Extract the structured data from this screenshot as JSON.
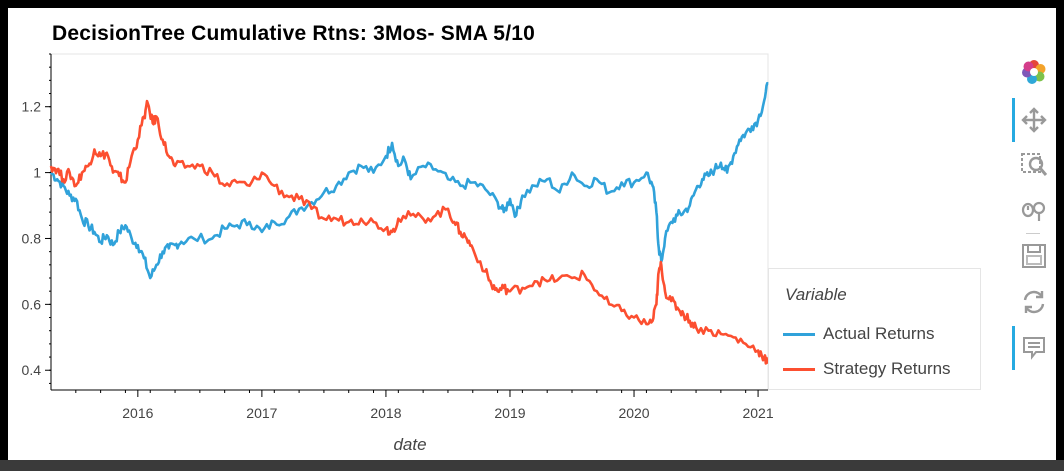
{
  "chart_data": {
    "type": "line",
    "title": "DecisionTree Cumulative Rtns: 3Mos- SMA 5/10",
    "xlabel": "date",
    "ylabel": "",
    "xlim": [
      2015.3,
      2021.08
    ],
    "ylim": [
      0.34,
      1.36
    ],
    "x_ticks": [
      "2016",
      "2017",
      "2018",
      "2019",
      "2020",
      "2021"
    ],
    "x_tick_values": [
      2016,
      2017,
      2018,
      2019,
      2020,
      2021
    ],
    "y_ticks": [
      "0.4",
      "0.6",
      "0.8",
      "1",
      "1.2"
    ],
    "y_tick_values": [
      0.4,
      0.6,
      0.8,
      1.0,
      1.2
    ],
    "grid": false,
    "legend": {
      "title": "Variable",
      "placement": "right"
    },
    "series": [
      {
        "name": "Actual Returns",
        "color": "#30a2da",
        "points": [
          [
            2015.3,
            1.0
          ],
          [
            2015.35,
            0.98
          ],
          [
            2015.4,
            0.96
          ],
          [
            2015.45,
            0.93
          ],
          [
            2015.5,
            0.92
          ],
          [
            2015.55,
            0.86
          ],
          [
            2015.6,
            0.84
          ],
          [
            2015.65,
            0.82
          ],
          [
            2015.7,
            0.79
          ],
          [
            2015.75,
            0.81
          ],
          [
            2015.8,
            0.78
          ],
          [
            2015.85,
            0.82
          ],
          [
            2015.9,
            0.84
          ],
          [
            2015.95,
            0.8
          ],
          [
            2016.0,
            0.78
          ],
          [
            2016.05,
            0.74
          ],
          [
            2016.1,
            0.68
          ],
          [
            2016.15,
            0.72
          ],
          [
            2016.2,
            0.76
          ],
          [
            2016.25,
            0.77
          ],
          [
            2016.3,
            0.78
          ],
          [
            2016.35,
            0.79
          ],
          [
            2016.45,
            0.8
          ],
          [
            2016.6,
            0.8
          ],
          [
            2016.7,
            0.83
          ],
          [
            2016.8,
            0.84
          ],
          [
            2016.9,
            0.85
          ],
          [
            2017.0,
            0.82
          ],
          [
            2017.1,
            0.85
          ],
          [
            2017.2,
            0.86
          ],
          [
            2017.3,
            0.89
          ],
          [
            2017.4,
            0.91
          ],
          [
            2017.5,
            0.94
          ],
          [
            2017.6,
            0.96
          ],
          [
            2017.7,
            1.0
          ],
          [
            2017.8,
            1.02
          ],
          [
            2017.9,
            1.0
          ],
          [
            2018.0,
            1.05
          ],
          [
            2018.05,
            1.09
          ],
          [
            2018.1,
            1.02
          ],
          [
            2018.15,
            1.04
          ],
          [
            2018.2,
            0.98
          ],
          [
            2018.3,
            1.02
          ],
          [
            2018.4,
            1.01
          ],
          [
            2018.5,
            0.98
          ],
          [
            2018.6,
            0.96
          ],
          [
            2018.7,
            0.97
          ],
          [
            2018.8,
            0.95
          ],
          [
            2018.9,
            0.91
          ],
          [
            2018.95,
            0.88
          ],
          [
            2019.0,
            0.92
          ],
          [
            2019.05,
            0.87
          ],
          [
            2019.1,
            0.93
          ],
          [
            2019.2,
            0.96
          ],
          [
            2019.3,
            0.98
          ],
          [
            2019.4,
            0.94
          ],
          [
            2019.5,
            1.0
          ],
          [
            2019.6,
            0.96
          ],
          [
            2019.7,
            0.98
          ],
          [
            2019.8,
            0.94
          ],
          [
            2019.9,
            0.97
          ],
          [
            2020.0,
            0.97
          ],
          [
            2020.1,
            1.0
          ],
          [
            2020.15,
            0.96
          ],
          [
            2020.18,
            0.88
          ],
          [
            2020.2,
            0.77
          ],
          [
            2020.22,
            0.73
          ],
          [
            2020.25,
            0.8
          ],
          [
            2020.3,
            0.85
          ],
          [
            2020.35,
            0.87
          ],
          [
            2020.4,
            0.88
          ],
          [
            2020.45,
            0.9
          ],
          [
            2020.5,
            0.95
          ],
          [
            2020.55,
            0.98
          ],
          [
            2020.6,
            0.99
          ],
          [
            2020.65,
            1.01
          ],
          [
            2020.7,
            1.03
          ],
          [
            2020.75,
            1.0
          ],
          [
            2020.8,
            1.05
          ],
          [
            2020.85,
            1.1
          ],
          [
            2020.9,
            1.12
          ],
          [
            2020.95,
            1.14
          ],
          [
            2021.0,
            1.16
          ],
          [
            2021.05,
            1.22
          ],
          [
            2021.08,
            1.27
          ]
        ]
      },
      {
        "name": "Strategy Returns",
        "color": "#fc4f30",
        "points": [
          [
            2015.3,
            1.02
          ],
          [
            2015.35,
            1.01
          ],
          [
            2015.4,
            0.98
          ],
          [
            2015.45,
            1.0
          ],
          [
            2015.5,
            0.96
          ],
          [
            2015.55,
            1.0
          ],
          [
            2015.6,
            1.02
          ],
          [
            2015.65,
            1.07
          ],
          [
            2015.7,
            1.05
          ],
          [
            2015.75,
            1.06
          ],
          [
            2015.8,
            1.0
          ],
          [
            2015.85,
            0.99
          ],
          [
            2015.9,
            0.97
          ],
          [
            2015.95,
            1.05
          ],
          [
            2016.0,
            1.1
          ],
          [
            2016.05,
            1.17
          ],
          [
            2016.08,
            1.21
          ],
          [
            2016.12,
            1.15
          ],
          [
            2016.15,
            1.17
          ],
          [
            2016.2,
            1.1
          ],
          [
            2016.25,
            1.05
          ],
          [
            2016.3,
            1.02
          ],
          [
            2016.4,
            1.02
          ],
          [
            2016.5,
            1.02
          ],
          [
            2016.6,
            1.0
          ],
          [
            2016.7,
            0.96
          ],
          [
            2016.8,
            0.97
          ],
          [
            2016.9,
            0.96
          ],
          [
            2017.0,
            1.0
          ],
          [
            2017.1,
            0.96
          ],
          [
            2017.2,
            0.93
          ],
          [
            2017.3,
            0.92
          ],
          [
            2017.4,
            0.89
          ],
          [
            2017.5,
            0.86
          ],
          [
            2017.6,
            0.86
          ],
          [
            2017.7,
            0.85
          ],
          [
            2017.8,
            0.86
          ],
          [
            2017.9,
            0.85
          ],
          [
            2018.0,
            0.83
          ],
          [
            2018.05,
            0.82
          ],
          [
            2018.1,
            0.86
          ],
          [
            2018.2,
            0.87
          ],
          [
            2018.3,
            0.86
          ],
          [
            2018.4,
            0.87
          ],
          [
            2018.5,
            0.89
          ],
          [
            2018.55,
            0.85
          ],
          [
            2018.6,
            0.82
          ],
          [
            2018.65,
            0.8
          ],
          [
            2018.7,
            0.77
          ],
          [
            2018.8,
            0.7
          ],
          [
            2018.85,
            0.66
          ],
          [
            2018.9,
            0.64
          ],
          [
            2018.95,
            0.65
          ],
          [
            2019.0,
            0.64
          ],
          [
            2019.1,
            0.65
          ],
          [
            2019.2,
            0.67
          ],
          [
            2019.3,
            0.67
          ],
          [
            2019.4,
            0.68
          ],
          [
            2019.5,
            0.68
          ],
          [
            2019.6,
            0.69
          ],
          [
            2019.7,
            0.64
          ],
          [
            2019.8,
            0.6
          ],
          [
            2019.9,
            0.58
          ],
          [
            2020.0,
            0.56
          ],
          [
            2020.1,
            0.54
          ],
          [
            2020.15,
            0.55
          ],
          [
            2020.18,
            0.6
          ],
          [
            2020.2,
            0.7
          ],
          [
            2020.22,
            0.72
          ],
          [
            2020.25,
            0.64
          ],
          [
            2020.3,
            0.61
          ],
          [
            2020.35,
            0.59
          ],
          [
            2020.4,
            0.57
          ],
          [
            2020.45,
            0.55
          ],
          [
            2020.5,
            0.53
          ],
          [
            2020.6,
            0.52
          ],
          [
            2020.7,
            0.51
          ],
          [
            2020.8,
            0.5
          ],
          [
            2020.9,
            0.48
          ],
          [
            2021.0,
            0.46
          ],
          [
            2021.05,
            0.44
          ],
          [
            2021.08,
            0.42
          ]
        ]
      }
    ]
  },
  "toolbar": {
    "tools": [
      {
        "name": "bokeh-logo-icon",
        "active": false
      },
      {
        "name": "pan-icon",
        "active": true
      },
      {
        "name": "box-zoom-icon",
        "active": false
      },
      {
        "name": "wheel-zoom-icon",
        "active": false
      },
      {
        "name": "save-icon",
        "active": false
      },
      {
        "name": "reset-icon",
        "active": false
      },
      {
        "name": "hover-icon",
        "active": true
      }
    ]
  }
}
